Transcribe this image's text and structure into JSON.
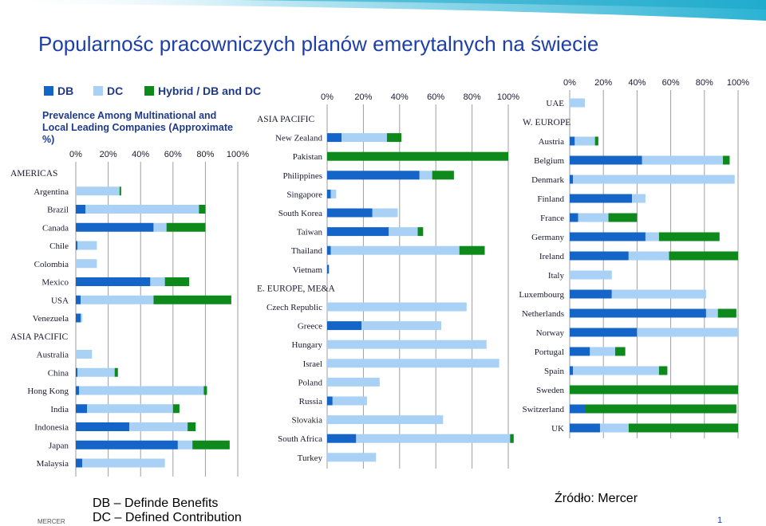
{
  "slide": {
    "title": "Popularnośc pracowniczych planów emerytalnych na świecie",
    "chart_subtitle": "Prevalence Among Multinational and Local Leading Companies (Approximate %)",
    "footer_lines": [
      "DB – Definde Benefits",
      "DC – Defined Contribution"
    ],
    "source": "Źródło: Mercer",
    "company_mark": "MERCER",
    "page_number": "1"
  },
  "colors": {
    "DB": "#1565c8",
    "DC": "#a9d1f5",
    "Hybrid": "#0e8a1c",
    "grid": "#9e9e9e",
    "label": "#1a1a2e",
    "banner": "#2bb3d3"
  },
  "legend": [
    {
      "key": "DB",
      "label": "DB"
    },
    {
      "key": "DC",
      "label": "DC"
    },
    {
      "key": "Hybrid",
      "label": "Hybrid / DB and DC"
    }
  ],
  "chart_data": [
    {
      "type": "bar",
      "orientation": "horizontal",
      "stacked": true,
      "xlim": [
        0,
        100
      ],
      "x_ticks": [
        "0%",
        "20%",
        "40%",
        "60%",
        "80%",
        "100%"
      ],
      "grid": true,
      "series_names": [
        "DB",
        "DC",
        "Hybrid / DB and DC"
      ],
      "rows": [
        {
          "label": "AMERICAS",
          "header": true
        },
        {
          "label": "Argentina",
          "values": [
            0,
            27,
            1
          ]
        },
        {
          "label": "Brazil",
          "values": [
            6,
            70,
            4
          ]
        },
        {
          "label": "Canada",
          "values": [
            48,
            8,
            24
          ]
        },
        {
          "label": "Chile",
          "values": [
            1,
            12,
            0
          ]
        },
        {
          "label": "Colombia",
          "values": [
            0,
            13,
            0
          ]
        },
        {
          "label": "Mexico",
          "values": [
            46,
            9,
            15
          ]
        },
        {
          "label": "USA",
          "values": [
            3,
            45,
            48
          ]
        },
        {
          "label": "Venezuela",
          "values": [
            3,
            1,
            0
          ]
        },
        {
          "label": "ASIA PACIFIC",
          "header": true
        },
        {
          "label": "Australia",
          "values": [
            0,
            10,
            0
          ]
        },
        {
          "label": "China",
          "values": [
            1,
            23,
            2
          ]
        },
        {
          "label": "Hong Kong",
          "values": [
            2,
            77,
            2
          ]
        },
        {
          "label": "India",
          "values": [
            7,
            53,
            4
          ]
        },
        {
          "label": "Indonesia",
          "values": [
            33,
            36,
            5
          ]
        },
        {
          "label": "Japan",
          "values": [
            63,
            9,
            23
          ]
        },
        {
          "label": "Malaysia",
          "values": [
            4,
            51,
            0
          ]
        }
      ]
    },
    {
      "type": "bar",
      "orientation": "horizontal",
      "stacked": true,
      "xlim": [
        0,
        100
      ],
      "x_ticks": [
        "0%",
        "20%",
        "40%",
        "60%",
        "80%",
        "100%"
      ],
      "grid": true,
      "series_names": [
        "DB",
        "DC",
        "Hybrid / DB and DC"
      ],
      "rows": [
        {
          "label": "ASIA PACIFIC",
          "header": true
        },
        {
          "label": "New Zealand",
          "values": [
            8,
            25,
            8
          ]
        },
        {
          "label": "Pakistan",
          "values": [
            0,
            0,
            100
          ]
        },
        {
          "label": "Philippines",
          "values": [
            51,
            7,
            12
          ]
        },
        {
          "label": "Singapore",
          "values": [
            2,
            3,
            0
          ]
        },
        {
          "label": "South Korea",
          "values": [
            25,
            14,
            0
          ]
        },
        {
          "label": "Taiwan",
          "values": [
            34,
            16,
            3
          ]
        },
        {
          "label": "Thailand",
          "values": [
            2,
            71,
            14
          ]
        },
        {
          "label": "Vietnam",
          "values": [
            1,
            0,
            0
          ]
        },
        {
          "label": "E. EUROPE, ME&A",
          "header": true
        },
        {
          "label": "Czech Republic",
          "values": [
            0,
            77,
            0
          ]
        },
        {
          "label": "Greece",
          "values": [
            19,
            44,
            0
          ]
        },
        {
          "label": "Hungary",
          "values": [
            0,
            88,
            0
          ]
        },
        {
          "label": "Israel",
          "values": [
            0,
            95,
            0
          ]
        },
        {
          "label": "Poland",
          "values": [
            0,
            29,
            0
          ]
        },
        {
          "label": "Russia",
          "values": [
            3,
            19,
            0
          ]
        },
        {
          "label": "Slovakia",
          "values": [
            0,
            64,
            0
          ]
        },
        {
          "label": "South Africa",
          "values": [
            16,
            85,
            2
          ]
        },
        {
          "label": "Turkey",
          "values": [
            0,
            27,
            0
          ]
        }
      ]
    },
    {
      "type": "bar",
      "orientation": "horizontal",
      "stacked": true,
      "xlim": [
        0,
        100
      ],
      "x_ticks": [
        "0%",
        "20%",
        "40%",
        "60%",
        "80%",
        "100%"
      ],
      "grid": true,
      "series_names": [
        "DB",
        "DC",
        "Hybrid / DB and DC"
      ],
      "rows": [
        {
          "label": "UAE",
          "values": [
            0,
            9,
            0
          ]
        },
        {
          "label": "W. EUROPE",
          "header": true
        },
        {
          "label": "Austria",
          "values": [
            3,
            12,
            2
          ]
        },
        {
          "label": "Belgium",
          "values": [
            43,
            48,
            4
          ]
        },
        {
          "label": "Denmark",
          "values": [
            2,
            96,
            0
          ]
        },
        {
          "label": "Finland",
          "values": [
            37,
            8,
            0
          ]
        },
        {
          "label": "France",
          "values": [
            5,
            18,
            17
          ]
        },
        {
          "label": "Germany",
          "values": [
            45,
            8,
            36
          ]
        },
        {
          "label": "Ireland",
          "values": [
            35,
            24,
            41
          ]
        },
        {
          "label": "Italy",
          "values": [
            0,
            25,
            0
          ]
        },
        {
          "label": "Luxembourg",
          "values": [
            25,
            56,
            0
          ]
        },
        {
          "label": "Netherlands",
          "values": [
            81,
            7,
            11
          ]
        },
        {
          "label": "Norway",
          "values": [
            40,
            60,
            0
          ]
        },
        {
          "label": "Portugal",
          "values": [
            12,
            15,
            6
          ]
        },
        {
          "label": "Spain",
          "values": [
            2,
            51,
            5
          ]
        },
        {
          "label": "Sweden",
          "values": [
            0,
            0,
            100
          ]
        },
        {
          "label": "Switzerland",
          "values": [
            9,
            0,
            90
          ]
        },
        {
          "label": "UK",
          "values": [
            18,
            17,
            65
          ]
        }
      ]
    }
  ]
}
